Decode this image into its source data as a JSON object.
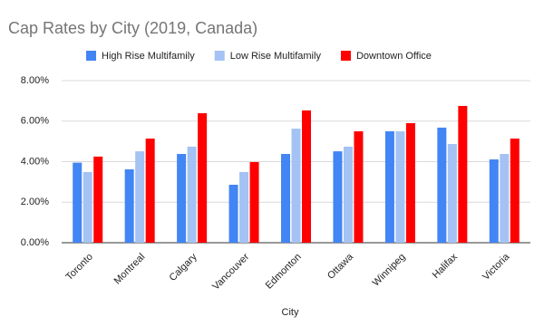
{
  "chart_data": {
    "type": "bar",
    "title": "Cap Rates by City (2019, Canada)",
    "x_label": "City",
    "categories": [
      "Toronto",
      "Montreal",
      "Calgary",
      "Vancouver",
      "Edmonton",
      "Ottawa",
      "Winnipeg",
      "Halifax",
      "Victoria"
    ],
    "series": [
      {
        "name": "High Rise Multifamily",
        "color": "#4285f4",
        "values": [
          3.95,
          3.62,
          4.38,
          2.86,
          4.38,
          4.51,
          5.5,
          5.68,
          4.11
        ]
      },
      {
        "name": "Low Rise Multifamily",
        "color": "#a4c2f4",
        "values": [
          3.49,
          4.51,
          4.74,
          3.49,
          5.63,
          4.74,
          5.5,
          4.87,
          4.38
        ]
      },
      {
        "name": "Downtown Office",
        "color": "#ff0000",
        "values": [
          4.25,
          5.14,
          6.39,
          3.98,
          6.53,
          5.5,
          5.9,
          6.75,
          5.14
        ]
      }
    ],
    "ylim": [
      0,
      8
    ],
    "yticks": [
      {
        "value": 0,
        "label": "0.00%"
      },
      {
        "value": 2,
        "label": "2.00%"
      },
      {
        "value": 4,
        "label": "4.00%"
      },
      {
        "value": 6,
        "label": "6.00%"
      },
      {
        "value": 8,
        "label": "8.00%"
      }
    ],
    "grid": true,
    "legend": "top"
  }
}
